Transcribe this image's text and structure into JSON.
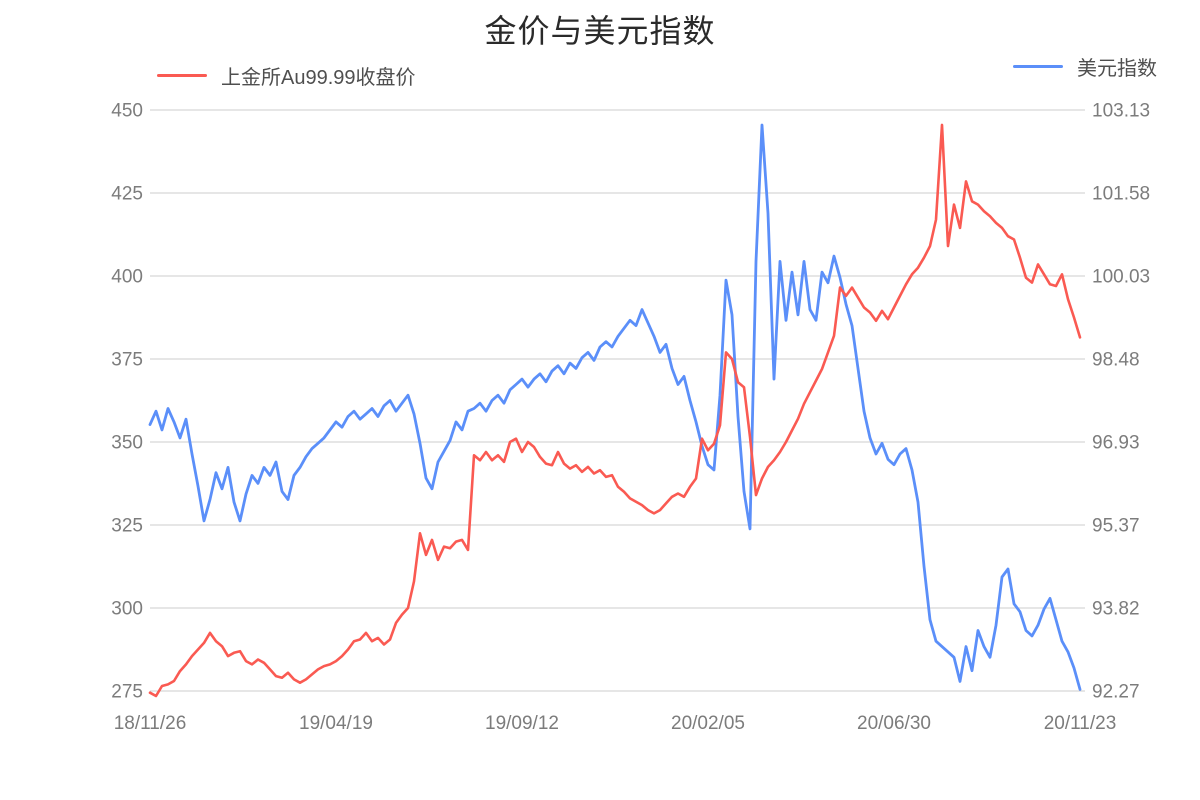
{
  "chart_data": {
    "type": "line",
    "title": "金价与美元指数",
    "legend": [
      {
        "label": "上金所Au99.99收盘价",
        "color": "#fa5a52",
        "position": "top-left"
      },
      {
        "label": "美元指数",
        "color": "#5b8ff9",
        "position": "top-right"
      }
    ],
    "x_axis": {
      "kind": "category-dates",
      "tick_labels": [
        "18/11/26",
        "19/04/19",
        "19/09/12",
        "20/02/05",
        "20/06/30",
        "20/11/23"
      ]
    },
    "left_axis": {
      "series": "上金所Au99.99收盘价",
      "tick_labels": [
        "450",
        "425",
        "400",
        "375",
        "350",
        "325",
        "300",
        "275"
      ],
      "tick_values": [
        450,
        425,
        400,
        375,
        350,
        325,
        300,
        275
      ],
      "grid": true
    },
    "right_axis": {
      "series": "美元指数",
      "tick_labels": [
        "103.13",
        "101.58",
        "100.03",
        "98.48",
        "96.93",
        "95.37",
        "93.82",
        "92.27"
      ],
      "tick_values": [
        103.13,
        101.58,
        100.03,
        98.48,
        96.93,
        95.37,
        93.82,
        92.27
      ],
      "grid": false
    },
    "series": [
      {
        "name": "上金所Au99.99收盘价",
        "axis": "left",
        "color": "#fa5a52",
        "stroke_width": 2.6,
        "values": [
          274.5,
          273.5,
          276.5,
          277,
          278,
          281,
          283,
          285.5,
          287.5,
          289.5,
          292.5,
          290,
          288.5,
          285.5,
          286.5,
          287,
          284,
          283,
          284.5,
          283.5,
          281.5,
          279.5,
          279,
          280.5,
          278.5,
          277.5,
          278.5,
          280,
          281.5,
          282.5,
          283,
          284,
          285.5,
          287.5,
          290,
          290.5,
          292.5,
          290,
          291,
          289,
          290.5,
          295.5,
          298,
          300,
          308,
          322.5,
          316,
          320.5,
          314.5,
          318.5,
          318,
          320,
          320.5,
          317.5,
          346,
          344.5,
          347,
          344.5,
          346,
          344,
          350,
          351,
          347,
          350,
          348.5,
          345.5,
          343.5,
          343,
          347,
          343.5,
          342,
          343,
          341,
          342.5,
          340.5,
          341.5,
          339.5,
          340,
          336.5,
          335,
          333,
          332,
          331,
          329.5,
          328.5,
          329.5,
          331.5,
          333.5,
          334.5,
          333.5,
          336.5,
          339,
          351,
          347.5,
          349.5,
          355,
          377,
          375,
          368,
          366.5,
          351.5,
          334,
          339,
          342.5,
          344.5,
          347,
          350,
          353.5,
          357,
          361.5,
          365,
          368.5,
          372,
          377,
          382,
          396.5,
          394,
          396.5,
          393.5,
          390.5,
          389,
          386.5,
          389.5,
          387,
          390.5,
          394,
          397.5,
          400.5,
          402.5,
          405.5,
          409,
          417,
          445.5,
          409,
          421.5,
          414.5,
          428.5,
          422.5,
          421.5,
          419.5,
          418,
          416,
          414.5,
          412,
          411,
          405.5,
          399.5,
          398,
          403.5,
          400.5,
          397.5,
          397,
          400.5,
          393,
          387.5,
          381.5
        ]
      },
      {
        "name": "美元指数",
        "axis": "right",
        "color": "#5b8ff9",
        "stroke_width": 2.8,
        "values": [
          97.25,
          97.5,
          97.15,
          97.55,
          97.3,
          97.0,
          97.35,
          96.7,
          96.1,
          95.45,
          95.85,
          96.35,
          96.05,
          96.45,
          95.8,
          95.45,
          95.95,
          96.3,
          96.15,
          96.45,
          96.3,
          96.55,
          96.0,
          95.85,
          96.3,
          96.45,
          96.65,
          96.8,
          96.9,
          97.0,
          97.15,
          97.3,
          97.2,
          97.4,
          97.5,
          97.35,
          97.45,
          97.55,
          97.4,
          97.6,
          97.7,
          97.5,
          97.65,
          97.8,
          97.45,
          96.9,
          96.25,
          96.05,
          96.55,
          96.75,
          96.95,
          97.3,
          97.15,
          97.5,
          97.55,
          97.65,
          97.5,
          97.7,
          97.8,
          97.65,
          97.9,
          98.0,
          98.1,
          97.95,
          98.1,
          98.2,
          98.05,
          98.25,
          98.35,
          98.2,
          98.4,
          98.3,
          98.5,
          98.6,
          98.45,
          98.7,
          98.8,
          98.7,
          98.9,
          99.05,
          99.2,
          99.1,
          99.4,
          99.15,
          98.9,
          98.6,
          98.75,
          98.3,
          98.0,
          98.15,
          97.7,
          97.3,
          96.85,
          96.5,
          96.4,
          97.8,
          99.95,
          99.3,
          97.4,
          96.0,
          95.3,
          100.3,
          102.85,
          101.2,
          98.1,
          100.3,
          99.2,
          100.1,
          99.3,
          100.3,
          99.4,
          99.2,
          100.1,
          99.9,
          100.4,
          100.0,
          99.5,
          99.1,
          98.3,
          97.5,
          97.0,
          96.7,
          96.9,
          96.6,
          96.5,
          96.7,
          96.8,
          96.4,
          95.8,
          94.6,
          93.6,
          93.2,
          93.1,
          93.0,
          92.9,
          92.45,
          93.1,
          92.65,
          93.4,
          93.1,
          92.9,
          93.5,
          94.4,
          94.55,
          93.9,
          93.75,
          93.4,
          93.3,
          93.5,
          93.8,
          94.0,
          93.6,
          93.2,
          93.0,
          92.7,
          92.3
        ]
      }
    ]
  }
}
